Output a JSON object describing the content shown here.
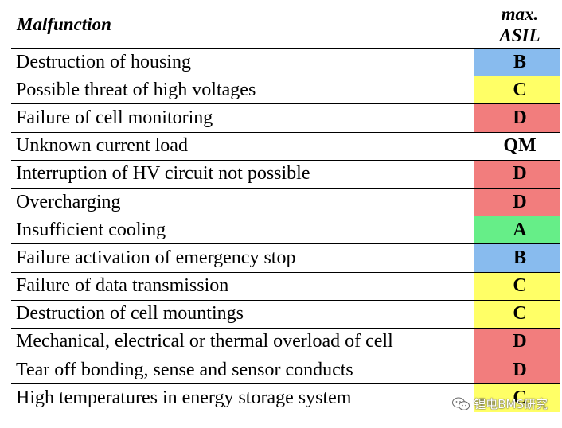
{
  "header": {
    "malfunction_label": "Malfunction",
    "asil_label_line1": "max.",
    "asil_label_line2": "ASIL"
  },
  "asil_colors": {
    "A": "#66ee88",
    "B": "#88bbee",
    "C": "#ffff66",
    "D": "#f27d7d",
    "QM": "#ffffff"
  },
  "rows": [
    {
      "malfunction": "Destruction of housing",
      "asil": "B"
    },
    {
      "malfunction": "Possible threat of high voltages",
      "asil": "C"
    },
    {
      "malfunction": "Failure of cell monitoring",
      "asil": "D"
    },
    {
      "malfunction": "Unknown current load",
      "asil": "QM"
    },
    {
      "malfunction": "Interruption of HV circuit not possible",
      "asil": "D"
    },
    {
      "malfunction": "Overcharging",
      "asil": "D"
    },
    {
      "malfunction": "Insufficient cooling",
      "asil": "A"
    },
    {
      "malfunction": "Failure activation of emergency stop",
      "asil": "B"
    },
    {
      "malfunction": "Failure of data transmission",
      "asil": "C"
    },
    {
      "malfunction": "Destruction of cell mountings",
      "asil": "C"
    },
    {
      "malfunction": "Mechanical, electrical or thermal overload of cell",
      "asil": "D"
    },
    {
      "malfunction": "Tear off bonding, sense and sensor conducts",
      "asil": "D"
    },
    {
      "malfunction": "High temperatures in energy storage system",
      "asil": "C"
    }
  ],
  "watermark": {
    "text": "锂电BMS研究",
    "icon": "wechat-icon"
  }
}
